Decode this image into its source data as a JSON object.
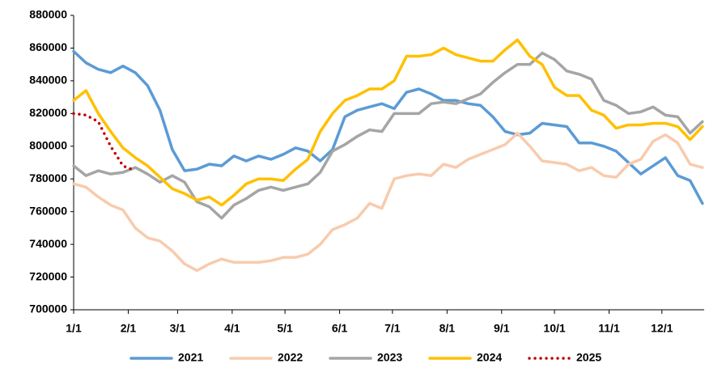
{
  "chart_data": {
    "type": "line",
    "x": [
      0,
      7,
      14,
      21,
      28,
      35,
      42,
      49,
      56,
      63,
      70,
      77,
      84,
      91,
      98,
      105,
      112,
      119,
      126,
      133,
      140,
      147,
      154,
      161,
      168,
      175,
      182,
      189,
      196,
      203,
      210,
      217,
      224,
      231,
      238,
      245,
      252,
      259,
      266,
      273,
      280,
      287,
      294,
      301,
      308,
      315,
      322,
      329,
      336,
      343,
      350,
      357
    ],
    "xlim": [
      0,
      358
    ],
    "xticks": [
      {
        "value": 0,
        "label": "1/1"
      },
      {
        "value": 31,
        "label": "2/1"
      },
      {
        "value": 59,
        "label": "3/1"
      },
      {
        "value": 90,
        "label": "4/1"
      },
      {
        "value": 120,
        "label": "5/1"
      },
      {
        "value": 151,
        "label": "6/1"
      },
      {
        "value": 181,
        "label": "7/1"
      },
      {
        "value": 212,
        "label": "8/1"
      },
      {
        "value": 243,
        "label": "9/1"
      },
      {
        "value": 273,
        "label": "10/1"
      },
      {
        "value": 304,
        "label": "11/1"
      },
      {
        "value": 334,
        "label": "12/1"
      }
    ],
    "ylim": [
      700000,
      880000
    ],
    "yticks": [
      700000,
      720000,
      740000,
      760000,
      780000,
      800000,
      820000,
      840000,
      860000,
      880000
    ],
    "legend": "bottom",
    "series": [
      {
        "name": "2021",
        "color": "#5b9bd5",
        "line_style": "solid",
        "values": [
          858000,
          851000,
          847000,
          845000,
          849000,
          845000,
          837000,
          822000,
          798000,
          785000,
          786000,
          789000,
          788000,
          794000,
          791000,
          794000,
          792000,
          795000,
          799000,
          797000,
          791000,
          798000,
          818000,
          822000,
          824000,
          826000,
          823000,
          833000,
          835000,
          832000,
          828000,
          828000,
          826000,
          825000,
          818000,
          809000,
          807000,
          808000,
          814000,
          813000,
          812000,
          802000,
          802000,
          800000,
          797000,
          790000,
          783000,
          788000,
          793000,
          782000,
          779000,
          765000
        ]
      },
      {
        "name": "2022",
        "color": "#f8cbad",
        "line_style": "solid",
        "values": [
          777000,
          775000,
          769000,
          764000,
          761000,
          750000,
          744000,
          742000,
          736000,
          728000,
          724000,
          728000,
          731000,
          729000,
          729000,
          729000,
          730000,
          732000,
          732000,
          734000,
          740000,
          749000,
          752000,
          756000,
          765000,
          762000,
          780000,
          782000,
          783000,
          782000,
          789000,
          787000,
          792000,
          795000,
          798000,
          801000,
          808000,
          800000,
          791000,
          790000,
          789000,
          785000,
          787000,
          782000,
          781000,
          789000,
          792000,
          803000,
          807000,
          802000,
          789000,
          787000
        ]
      },
      {
        "name": "2023",
        "color": "#a5a5a5",
        "line_style": "solid",
        "values": [
          788000,
          782000,
          785000,
          783000,
          784000,
          787000,
          783000,
          778000,
          782000,
          778000,
          766000,
          763000,
          756000,
          764000,
          768000,
          773000,
          775000,
          773000,
          775000,
          777000,
          784000,
          797000,
          801000,
          806000,
          810000,
          809000,
          820000,
          820000,
          820000,
          826000,
          827000,
          826000,
          829000,
          832000,
          839000,
          845000,
          850000,
          850000,
          857000,
          853000,
          846000,
          844000,
          841000,
          828000,
          825000,
          820000,
          821000,
          824000,
          819000,
          818000,
          808000,
          815000
        ]
      },
      {
        "name": "2024",
        "color": "#ffc000",
        "line_style": "solid",
        "values": [
          828000,
          834000,
          820000,
          809000,
          799000,
          793000,
          788000,
          781000,
          774000,
          771000,
          767000,
          769000,
          764000,
          770000,
          777000,
          780000,
          780000,
          779000,
          786000,
          792000,
          809000,
          820000,
          828000,
          831000,
          835000,
          835000,
          840000,
          855000,
          855000,
          856000,
          860000,
          856000,
          854000,
          852000,
          852000,
          859000,
          865000,
          855000,
          850000,
          836000,
          831000,
          831000,
          822000,
          819000,
          811000,
          813000,
          813000,
          814000,
          814000,
          812000,
          804000,
          812000
        ]
      },
      {
        "name": "2025",
        "color": "#c00000",
        "line_style": "dotted",
        "values": [
          820000,
          819000,
          815000,
          800000,
          788000,
          785000,
          null,
          null,
          null,
          null,
          null,
          null,
          null,
          null,
          null,
          null,
          null,
          null,
          null,
          null,
          null,
          null,
          null,
          null,
          null,
          null,
          null,
          null,
          null,
          null,
          null,
          null,
          null,
          null,
          null,
          null,
          null,
          null,
          null,
          null,
          null,
          null,
          null,
          null,
          null,
          null,
          null,
          null,
          null,
          null,
          null,
          null
        ]
      }
    ]
  }
}
